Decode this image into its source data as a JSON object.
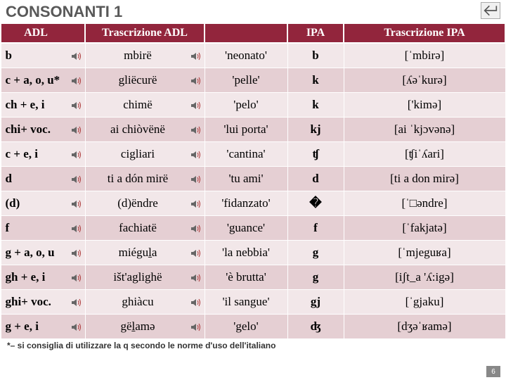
{
  "title": "CONSONANTI 1",
  "headers": {
    "adl": "ADL",
    "tra": "Trascrizione ADL",
    "gloss": "",
    "ipa": "IPA",
    "ipat": "Trascrizione IPA"
  },
  "rows": [
    {
      "adl": "b",
      "tra": "mbirë",
      "gloss": "'neonato'",
      "ipa": "b",
      "ipat": "[ˈmbirə]"
    },
    {
      "adl": "c + a, o, u*",
      "tra": "gliëcurë",
      "gloss": "'pelle'",
      "ipa": "k",
      "ipat": "[ʎəˈkurə]"
    },
    {
      "adl": "ch + e, i",
      "tra": "chimë",
      "gloss": "'pelo'",
      "ipa": "k",
      "ipat": "['kimə]"
    },
    {
      "adl": "chi+ voc.",
      "tra": "ai chiòvënë",
      "gloss": "'lui porta'",
      "ipa": "kj",
      "ipat": "[ai ˈkjɔvənə]"
    },
    {
      "adl": "c + e, i",
      "tra": "cigliari",
      "gloss": "'cantina'",
      "ipa": "ʧ",
      "ipat": "[ʧiˈʎari]"
    },
    {
      "adl": "d",
      "tra": "ti a dón mirë",
      "gloss": "'tu ami'",
      "ipa": "d",
      "ipat": "[ti a don mirə]"
    },
    {
      "adl": "(d)",
      "tra": "(d)ëndre",
      "gloss": "'fidanzato'",
      "ipa": "�",
      "ipat": "[ˈ□əndre]"
    },
    {
      "adl": "f",
      "tra": "fachiatë",
      "gloss": "'guance'",
      "ipa": "f",
      "ipat": "[ˈfakjatə]"
    },
    {
      "adl": "g + a, o, u",
      "tra": "miéguḻa",
      "gloss": "'la nebbia'",
      "ipa": "g",
      "ipat": "[ˈmjeguʁa]"
    },
    {
      "adl": "gh + e, i",
      "tra": "išt'aglighë",
      "gloss": "'è brutta'",
      "ipa": "g",
      "ipat": "[iʃt_a 'ʎ:igə]"
    },
    {
      "adl": "ghi+ voc.",
      "tra": "ghiàcu",
      "gloss": "'il sangue'",
      "ipa": "gj",
      "ipat": "[ˈgjaku]"
    },
    {
      "adl": "g + e, i",
      "tra": "gëḻamə",
      "gloss": "'gelo'",
      "ipa": "ʤ",
      "ipat": "[dʒəˈʁamə]"
    }
  ],
  "footnote": "*– si consiglia di utilizzare la q secondo le norme d'uso dell'italiano",
  "pagenum": "6",
  "colors": {
    "header_bg": "#92253c",
    "row_odd": "#f2e7e9",
    "row_even": "#e5cfd3"
  }
}
